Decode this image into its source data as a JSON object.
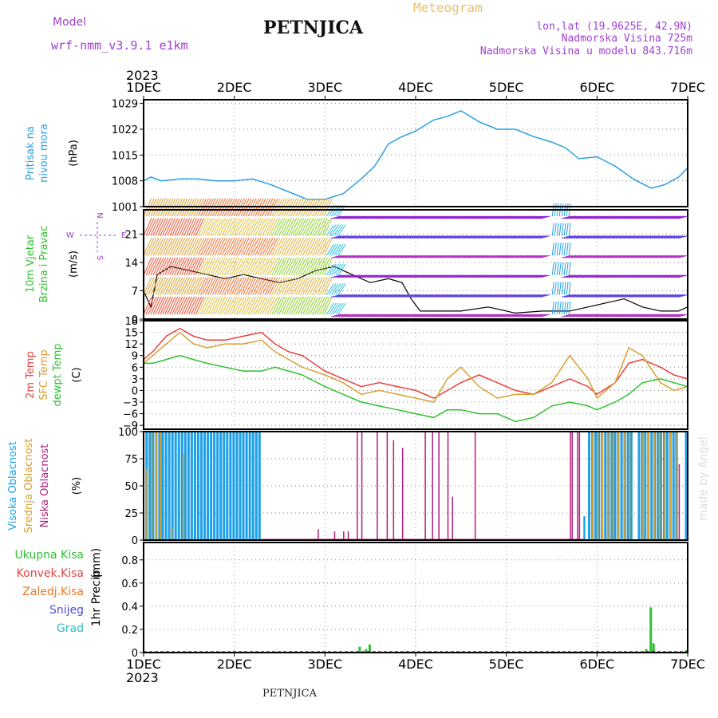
{
  "header": {
    "model_label": "Model",
    "model_name": "wrf-nmm_v3.9.1  e1km",
    "station": "PETNJICA",
    "meteogram": "Meteogram",
    "lonlat": "lon,lat (19.9625E, 42.9N)",
    "altitude": "Nadmorska Visina 725m",
    "model_altitude": "Nadmorska Visina u modelu 843.716m",
    "footer_station": "PETNJICA",
    "watermark": "made by Angel"
  },
  "colors": {
    "pressure": "#2a9fe0",
    "temp2m": "#e84040",
    "sfc": "#d8a030",
    "dew": "#30c030",
    "high_cloud": "#1ca0e8",
    "mid_cloud": "#d8a030",
    "low_cloud": "#b0207a",
    "total_rain": "#30c030",
    "purple": "#a040d0"
  },
  "chart_data": [
    {
      "type": "line",
      "panel": "pressure",
      "ylabel_lines": [
        "Pritisak na",
        "nivou mora"
      ],
      "unit": "(hPa)",
      "year": "2023",
      "x_ticks": [
        "1DEC",
        "2DEC",
        "3DEC",
        "4DEC",
        "5DEC",
        "6DEC",
        "7DEC"
      ],
      "y_ticks": [
        1001,
        1008,
        1015,
        1022,
        1029
      ],
      "ylim": [
        1001,
        1030
      ],
      "xlim": [
        0,
        6
      ],
      "grid": true,
      "series": [
        {
          "x": [
            0,
            0.08,
            0.2,
            0.4,
            0.6,
            0.8,
            1.0,
            1.2,
            1.4,
            1.6,
            1.8,
            2.0,
            2.2,
            2.4,
            2.55,
            2.7,
            2.85,
            3.0,
            3.2,
            3.35,
            3.5,
            3.7,
            3.9,
            4.1,
            4.3,
            4.5,
            4.65,
            4.8,
            5.0,
            5.2,
            5.4,
            5.6,
            5.75,
            5.9,
            6.0
          ],
          "y": [
            1008,
            1009,
            1008,
            1008.5,
            1008.5,
            1008,
            1008,
            1008.5,
            1007,
            1005,
            1003,
            1003,
            1004.5,
            1008.5,
            1012,
            1018,
            1020,
            1021.5,
            1024.5,
            1025.5,
            1027,
            1024,
            1022,
            1022,
            1020,
            1018.5,
            1017,
            1014,
            1014.5,
            1012,
            1008.5,
            1006,
            1007,
            1009,
            1011.5
          ]
        }
      ]
    },
    {
      "type": "line",
      "panel": "wind",
      "ylabel_lines": [
        "10m Vjetar",
        "Brzina i Pravac"
      ],
      "unit": "(m/s)",
      "y_ticks": [
        0,
        7,
        14,
        21
      ],
      "ylim": [
        0,
        27
      ],
      "xlim": [
        0,
        6
      ],
      "grid": true,
      "compass": {
        "n": "N",
        "s": "S",
        "e": "E",
        "w": "W"
      },
      "series": [
        {
          "name": "speed",
          "x": [
            0,
            0.08,
            0.15,
            0.3,
            0.5,
            0.7,
            0.9,
            1.1,
            1.3,
            1.5,
            1.7,
            1.9,
            2.1,
            2.3,
            2.5,
            2.7,
            2.85,
            2.95,
            3.05,
            3.2,
            3.5,
            3.8,
            4.1,
            4.4,
            4.7,
            4.9,
            5.1,
            5.3,
            5.5,
            5.7,
            5.9,
            6.0
          ],
          "y": [
            7,
            3,
            11,
            13,
            12,
            11,
            10,
            11,
            10,
            9,
            10,
            12,
            13,
            11,
            9,
            10,
            9,
            5,
            2,
            2,
            2,
            3,
            1.5,
            2,
            2,
            3,
            4,
            5,
            3,
            2,
            2,
            3
          ]
        }
      ]
    },
    {
      "type": "line",
      "panel": "temperature",
      "ylabel_lines": [
        "2m Temp",
        "SFC Temp",
        "dewpt Temp"
      ],
      "unit": "(C)",
      "y_ticks": [
        -9,
        -6,
        -3,
        0,
        3,
        6,
        9,
        12,
        15,
        18
      ],
      "ylim": [
        -10,
        18
      ],
      "xlim": [
        0,
        6
      ],
      "grid": true,
      "series": [
        {
          "name": "2m Temp",
          "x": [
            0,
            0.1,
            0.25,
            0.4,
            0.55,
            0.7,
            0.9,
            1.1,
            1.3,
            1.45,
            1.6,
            1.75,
            2.0,
            2.2,
            2.4,
            2.6,
            2.8,
            3.0,
            3.2,
            3.35,
            3.5,
            3.7,
            3.9,
            4.1,
            4.3,
            4.5,
            4.7,
            4.9,
            5.0,
            5.2,
            5.35,
            5.5,
            5.7,
            5.85,
            6.0
          ],
          "y": [
            8,
            10,
            14,
            16,
            14,
            13,
            13,
            14,
            15,
            12,
            10,
            9,
            5,
            3,
            1,
            2,
            1,
            0,
            -2,
            0,
            2,
            4,
            2,
            0,
            -1,
            1,
            3,
            1,
            -1,
            2,
            7,
            8,
            6,
            4,
            3
          ]
        },
        {
          "name": "SFC Temp",
          "x": [
            0,
            0.1,
            0.25,
            0.4,
            0.55,
            0.7,
            0.9,
            1.1,
            1.3,
            1.45,
            1.6,
            1.75,
            2.0,
            2.2,
            2.4,
            2.6,
            2.8,
            3.0,
            3.2,
            3.35,
            3.5,
            3.7,
            3.9,
            4.1,
            4.3,
            4.5,
            4.7,
            4.9,
            5.0,
            5.2,
            5.35,
            5.5,
            5.7,
            5.85,
            6.0
          ],
          "y": [
            7,
            9,
            12,
            15,
            12,
            11,
            12,
            12,
            13,
            10,
            8,
            6,
            4,
            2,
            -1,
            0,
            -1,
            -2,
            -3,
            3,
            6,
            1,
            -2,
            -1,
            -1,
            2,
            9,
            3,
            -2,
            2,
            11,
            9,
            2,
            0,
            1
          ]
        },
        {
          "name": "dewpt Temp",
          "x": [
            0,
            0.1,
            0.25,
            0.4,
            0.55,
            0.7,
            0.9,
            1.1,
            1.3,
            1.45,
            1.6,
            1.75,
            2.0,
            2.2,
            2.4,
            2.6,
            2.8,
            3.0,
            3.2,
            3.35,
            3.5,
            3.7,
            3.9,
            4.1,
            4.3,
            4.5,
            4.7,
            4.9,
            5.0,
            5.2,
            5.35,
            5.5,
            5.7,
            5.85,
            6.0
          ],
          "y": [
            7,
            7,
            8,
            9,
            8,
            7,
            6,
            5,
            5,
            6,
            5,
            4,
            1,
            -1,
            -3,
            -4,
            -5,
            -6,
            -7,
            -5,
            -5,
            -6,
            -6,
            -8,
            -7,
            -4,
            -3,
            -4,
            -5,
            -3,
            -1,
            2,
            3,
            2,
            1
          ]
        }
      ]
    },
    {
      "type": "bar",
      "panel": "clouds",
      "ylabel_lines": [
        "Visoka Oblacnost",
        "Srednja Oblacnost",
        "Niska Oblacnost"
      ],
      "unit": "(%)",
      "y_ticks": [
        0,
        25,
        50,
        75,
        100
      ],
      "ylim": [
        0,
        100
      ],
      "xlim": [
        0,
        6
      ],
      "grid": true,
      "high_blocks": [
        [
          0.02,
          1.3,
          100
        ],
        [
          4.85,
          4.88,
          22
        ],
        [
          4.9,
          5.4,
          100
        ],
        [
          5.45,
          5.9,
          100
        ],
        [
          5.97,
          6.0,
          100
        ]
      ],
      "mid_bars": [
        [
          0.03,
          65
        ],
        [
          0.08,
          100
        ],
        [
          0.13,
          100
        ],
        [
          0.18,
          100
        ],
        [
          0.3,
          12
        ],
        [
          0.43,
          80
        ],
        [
          4.94,
          100
        ],
        [
          5.0,
          100
        ],
        [
          5.05,
          100
        ],
        [
          5.11,
          100
        ],
        [
          5.17,
          100
        ],
        [
          5.23,
          100
        ],
        [
          5.29,
          100
        ],
        [
          5.35,
          100
        ],
        [
          5.5,
          100
        ],
        [
          5.56,
          100
        ],
        [
          5.62,
          100
        ],
        [
          5.68,
          100
        ],
        [
          5.74,
          100
        ],
        [
          5.8,
          100
        ],
        [
          5.86,
          100
        ]
      ],
      "low_bars": [
        [
          1.92,
          10
        ],
        [
          2.1,
          8
        ],
        [
          2.2,
          8
        ],
        [
          2.25,
          8
        ],
        [
          2.35,
          100
        ],
        [
          2.4,
          100
        ],
        [
          2.57,
          100
        ],
        [
          2.68,
          100
        ],
        [
          2.75,
          92
        ],
        [
          2.85,
          85
        ],
        [
          3.1,
          100
        ],
        [
          3.18,
          100
        ],
        [
          3.25,
          100
        ],
        [
          3.35,
          100
        ],
        [
          3.4,
          40
        ],
        [
          3.65,
          100
        ],
        [
          4.7,
          100
        ],
        [
          4.72,
          100
        ],
        [
          4.78,
          100
        ],
        [
          4.8,
          100
        ],
        [
          5.9,
          70
        ]
      ]
    },
    {
      "type": "bar",
      "panel": "precip",
      "legend": [
        {
          "label": "Ukupna Kisa",
          "color": "#30c030"
        },
        {
          "label": "Konvek.Kisa",
          "color": "#e84040"
        },
        {
          "label": "Zaledj.Kisa",
          "color": "#f07820"
        },
        {
          "label": "Snijeg",
          "color": "#5050e0"
        },
        {
          "label": "Grad",
          "color": "#30c0c0"
        }
      ],
      "unit_lines": [
        "1hr Precip",
        "(mm)"
      ],
      "y_ticks": [
        0,
        0.2,
        0.4,
        0.6,
        0.8
      ],
      "ylim": [
        0,
        0.95
      ],
      "xlim": [
        0,
        6
      ],
      "grid": true,
      "bars": [
        [
          2.37,
          0.05
        ],
        [
          2.44,
          0.03
        ],
        [
          2.48,
          0.07
        ],
        [
          4.8,
          0.01
        ],
        [
          5.53,
          0.03
        ],
        [
          5.58,
          0.39
        ],
        [
          5.61,
          0.08
        ],
        [
          5.97,
          0.02
        ]
      ]
    }
  ]
}
